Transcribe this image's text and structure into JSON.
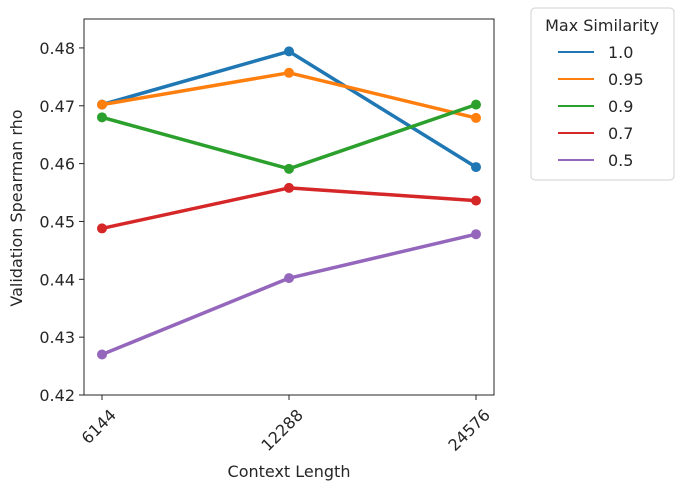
{
  "chart_data": {
    "type": "line",
    "xlabel": "Context Length",
    "ylabel": "Validation Spearman rho",
    "x_categories": [
      "6144",
      "12288",
      "24576"
    ],
    "x_values": [
      6144,
      12288,
      24576
    ],
    "x_scale": "log2",
    "ylim": [
      0.42,
      0.485
    ],
    "yticks": [
      "0.42",
      "0.43",
      "0.44",
      "0.45",
      "0.46",
      "0.47",
      "0.48"
    ],
    "ytick_values": [
      0.42,
      0.43,
      0.44,
      0.45,
      0.46,
      0.47,
      0.48
    ],
    "grid": false,
    "legend": {
      "title": "Max Similarity",
      "placement": "outside-right"
    },
    "series": [
      {
        "name": "1.0",
        "color": "#1f77b4",
        "values": [
          0.4702,
          0.4794,
          0.4594
        ]
      },
      {
        "name": "0.95",
        "color": "#ff7f0e",
        "values": [
          0.4702,
          0.4757,
          0.4679
        ]
      },
      {
        "name": "0.9",
        "color": "#2ca02c",
        "values": [
          0.468,
          0.4591,
          0.4702
        ]
      },
      {
        "name": "0.7",
        "color": "#d62728",
        "values": [
          0.4488,
          0.4558,
          0.4536
        ]
      },
      {
        "name": "0.5",
        "color": "#9467bd",
        "values": [
          0.427,
          0.4402,
          0.4478
        ]
      }
    ]
  }
}
